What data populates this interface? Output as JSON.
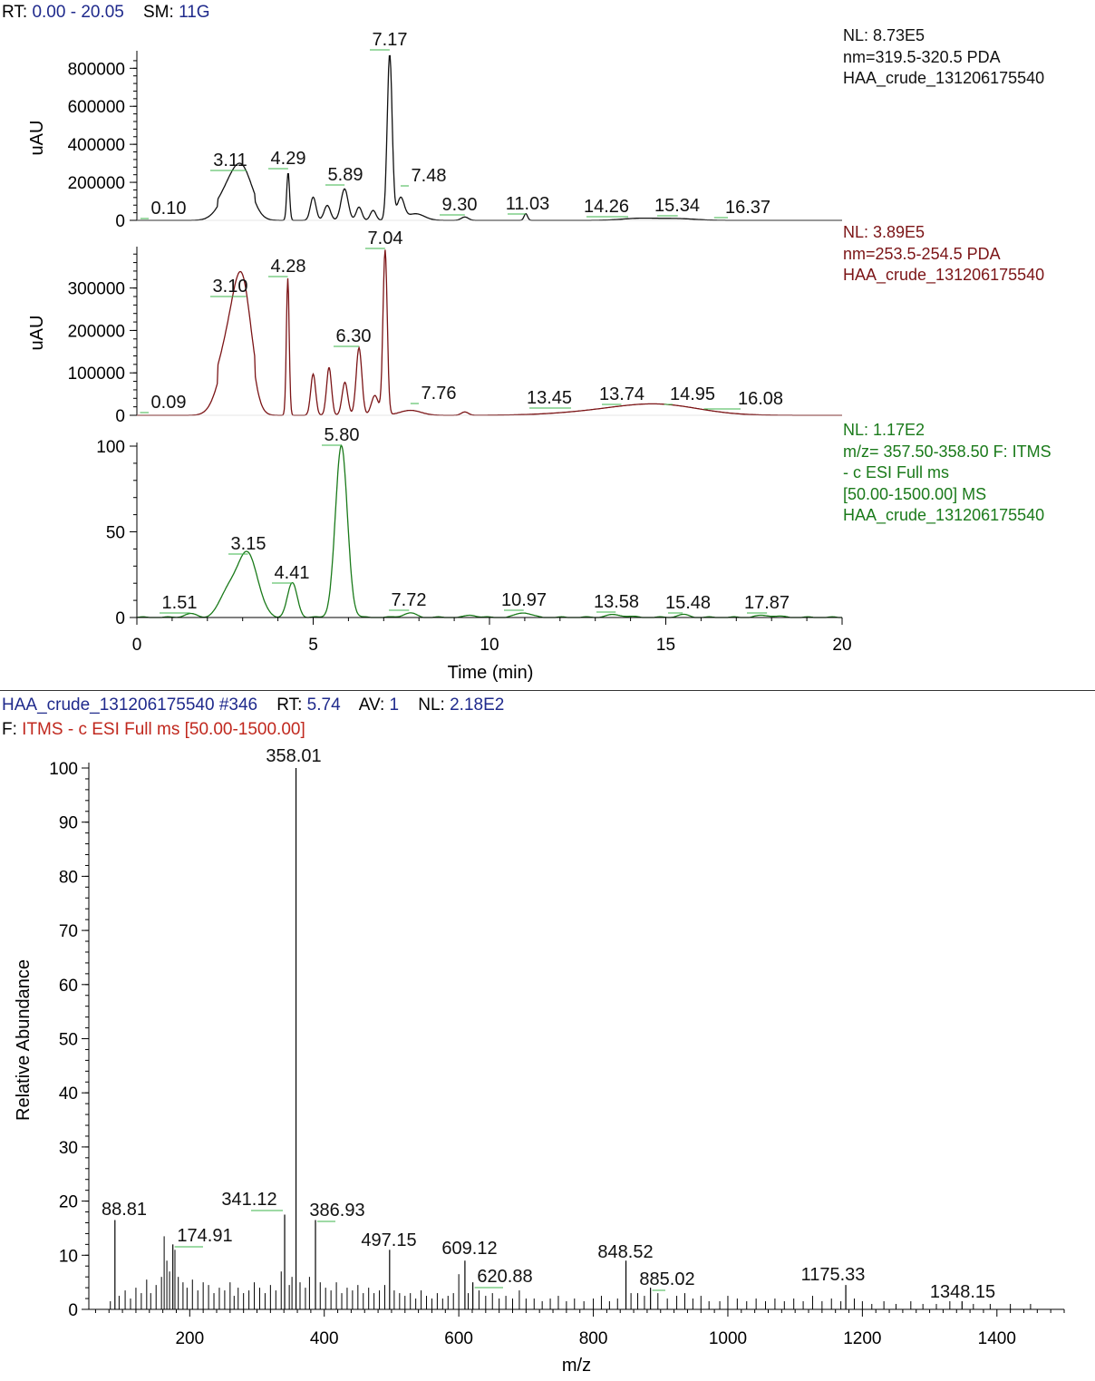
{
  "header": {
    "rt_key": "RT:",
    "rt_value": "0.00 - 20.05",
    "sm_key": "SM:",
    "sm_value": "11G"
  },
  "chromatograms": {
    "x_axis": {
      "label": "Time (min)",
      "ticks": [
        0,
        5,
        10,
        15,
        20
      ],
      "range": [
        0,
        20
      ]
    },
    "traces": [
      {
        "color": "#111111",
        "y_label": "uAU",
        "y_ticks": [
          "0",
          "200000",
          "400000",
          "600000",
          "800000"
        ],
        "y_tick_values": [
          0,
          200000,
          400000,
          600000,
          800000
        ],
        "y_max": 873000,
        "info": [
          "NL: 8.73E5",
          "nm=319.5-320.5  PDA",
          "HAA_crude_131206175540"
        ],
        "peaks": [
          {
            "label": "0.10",
            "t": 0.1
          },
          {
            "label": "3.11",
            "t": 3.11
          },
          {
            "label": "4.29",
            "t": 4.29
          },
          {
            "label": "5.89",
            "t": 5.89
          },
          {
            "label": "7.17",
            "t": 7.17
          },
          {
            "label": "7.48",
            "t": 7.48
          },
          {
            "label": "9.30",
            "t": 9.3
          },
          {
            "label": "11.03",
            "t": 11.03
          },
          {
            "label": "14.26",
            "t": 14.26
          },
          {
            "label": "15.34",
            "t": 15.34
          },
          {
            "label": "16.37",
            "t": 16.37
          }
        ]
      },
      {
        "color": "#7b1416",
        "y_label": "uAU",
        "y_ticks": [
          "0",
          "100000",
          "200000",
          "300000"
        ],
        "y_tick_values": [
          0,
          100000,
          200000,
          300000
        ],
        "y_max": 389000,
        "info": [
          "NL: 3.89E5",
          "nm=253.5-254.5  PDA",
          "HAA_crude_131206175540"
        ],
        "peaks": [
          {
            "label": "0.09",
            "t": 0.09
          },
          {
            "label": "3.10",
            "t": 3.1
          },
          {
            "label": "4.28",
            "t": 4.28
          },
          {
            "label": "6.30",
            "t": 6.3
          },
          {
            "label": "7.04",
            "t": 7.04
          },
          {
            "label": "7.76",
            "t": 7.76
          },
          {
            "label": "13.45",
            "t": 13.45
          },
          {
            "label": "13.74",
            "t": 13.74
          },
          {
            "label": "14.95",
            "t": 14.95
          },
          {
            "label": "16.08",
            "t": 16.08
          }
        ]
      },
      {
        "color": "#1a7a1a",
        "y_label": "",
        "y_ticks": [
          "0",
          "50",
          "100"
        ],
        "y_tick_values": [
          0,
          50,
          100
        ],
        "y_max": 100,
        "info": [
          "NL: 1.17E2",
          "m/z= 357.50-358.50 F: ITMS",
          "- c ESI Full ms",
          "[50.00-1500.00]  MS",
          "HAA_crude_131206175540"
        ],
        "peaks": [
          {
            "label": "1.51",
            "t": 1.51
          },
          {
            "label": "3.15",
            "t": 3.15
          },
          {
            "label": "4.41",
            "t": 4.41
          },
          {
            "label": "5.80",
            "t": 5.8
          },
          {
            "label": "7.72",
            "t": 7.72
          },
          {
            "label": "10.97",
            "t": 10.97
          },
          {
            "label": "13.58",
            "t": 13.58
          },
          {
            "label": "15.48",
            "t": 15.48
          },
          {
            "label": "17.87",
            "t": 17.87
          }
        ]
      }
    ]
  },
  "spectrum_header": {
    "file": "HAA_crude_131206175540",
    "scan": "#346",
    "rt_key": "RT:",
    "rt_value": "5.74",
    "av_key": "AV:",
    "av_value": "1",
    "nl_key": "NL:",
    "nl_value": "2.18E2",
    "filter_key": "F:",
    "filter_value": "ITMS - c ESI Full ms [50.00-1500.00]"
  },
  "chart_data": {
    "type": "bar",
    "xlabel": "m/z",
    "ylabel": "Relative Abundance",
    "xlim": [
      50,
      1500
    ],
    "ylim": [
      0,
      100
    ],
    "x_ticks": [
      200,
      400,
      600,
      800,
      1000,
      1200,
      1400
    ],
    "y_ticks": [
      0,
      10,
      20,
      30,
      40,
      50,
      60,
      70,
      80,
      90,
      100
    ],
    "labeled_peaks": [
      {
        "mz": 88.81,
        "label": "88.81",
        "intensity": 16.5
      },
      {
        "mz": 174.91,
        "label": "174.91",
        "intensity": 12
      },
      {
        "mz": 341.12,
        "label": "341.12",
        "intensity": 17.5
      },
      {
        "mz": 358.01,
        "label": "358.01",
        "intensity": 100
      },
      {
        "mz": 386.93,
        "label": "386.93",
        "intensity": 16.5
      },
      {
        "mz": 497.15,
        "label": "497.15",
        "intensity": 11
      },
      {
        "mz": 609.12,
        "label": "609.12",
        "intensity": 9
      },
      {
        "mz": 620.88,
        "label": "620.88",
        "intensity": 5
      },
      {
        "mz": 848.52,
        "label": "848.52",
        "intensity": 9
      },
      {
        "mz": 885.02,
        "label": "885.02",
        "intensity": 4
      },
      {
        "mz": 1175.33,
        "label": "1175.33",
        "intensity": 4.5
      },
      {
        "mz": 1348.15,
        "label": "1348.15",
        "intensity": 1.5
      }
    ],
    "peaks": [
      [
        82,
        1.5
      ],
      [
        95,
        2.5
      ],
      [
        104,
        3.5
      ],
      [
        112,
        2
      ],
      [
        120,
        4
      ],
      [
        128,
        3
      ],
      [
        136,
        5.5
      ],
      [
        142,
        3
      ],
      [
        150,
        4.5
      ],
      [
        158,
        6
      ],
      [
        162,
        13.5
      ],
      [
        166,
        9
      ],
      [
        170,
        7
      ],
      [
        178,
        11
      ],
      [
        183,
        6
      ],
      [
        190,
        5
      ],
      [
        196,
        4
      ],
      [
        204,
        5.5
      ],
      [
        212,
        3.5
      ],
      [
        220,
        5
      ],
      [
        228,
        4.5
      ],
      [
        236,
        3
      ],
      [
        244,
        4
      ],
      [
        252,
        3.5
      ],
      [
        260,
        5
      ],
      [
        266,
        2.5
      ],
      [
        272,
        4
      ],
      [
        280,
        3
      ],
      [
        288,
        3.5
      ],
      [
        296,
        5
      ],
      [
        304,
        4
      ],
      [
        312,
        3
      ],
      [
        320,
        4.5
      ],
      [
        328,
        3.5
      ],
      [
        336,
        7
      ],
      [
        348,
        4.5
      ],
      [
        352,
        6
      ],
      [
        364,
        5
      ],
      [
        372,
        4
      ],
      [
        378,
        6
      ],
      [
        394,
        5
      ],
      [
        402,
        4
      ],
      [
        410,
        3.5
      ],
      [
        418,
        5
      ],
      [
        426,
        3
      ],
      [
        434,
        4
      ],
      [
        442,
        3.5
      ],
      [
        450,
        4.5
      ],
      [
        458,
        3
      ],
      [
        466,
        4
      ],
      [
        474,
        3
      ],
      [
        482,
        3.5
      ],
      [
        490,
        4.5
      ],
      [
        504,
        3.5
      ],
      [
        512,
        3
      ],
      [
        520,
        2.5
      ],
      [
        528,
        3
      ],
      [
        536,
        2
      ],
      [
        544,
        3.5
      ],
      [
        552,
        2.5
      ],
      [
        560,
        2
      ],
      [
        568,
        3
      ],
      [
        576,
        2
      ],
      [
        584,
        2.5
      ],
      [
        592,
        3
      ],
      [
        600,
        6.5
      ],
      [
        614,
        3
      ],
      [
        630,
        3.5
      ],
      [
        640,
        2.5
      ],
      [
        650,
        3
      ],
      [
        660,
        2
      ],
      [
        670,
        2.5
      ],
      [
        680,
        2
      ],
      [
        690,
        3.5
      ],
      [
        700,
        2
      ],
      [
        712,
        2
      ],
      [
        724,
        1.5
      ],
      [
        736,
        2
      ],
      [
        748,
        2.5
      ],
      [
        760,
        1.5
      ],
      [
        772,
        2
      ],
      [
        786,
        1.5
      ],
      [
        800,
        2
      ],
      [
        812,
        2.5
      ],
      [
        824,
        1.5
      ],
      [
        836,
        2
      ],
      [
        856,
        3
      ],
      [
        866,
        3
      ],
      [
        876,
        2.5
      ],
      [
        896,
        3
      ],
      [
        910,
        2
      ],
      [
        924,
        2.5
      ],
      [
        936,
        3
      ],
      [
        948,
        2
      ],
      [
        960,
        2.5
      ],
      [
        972,
        1.5
      ],
      [
        988,
        1.5
      ],
      [
        1000,
        2.5
      ],
      [
        1014,
        2
      ],
      [
        1028,
        1.5
      ],
      [
        1042,
        2
      ],
      [
        1056,
        1.5
      ],
      [
        1070,
        2
      ],
      [
        1084,
        1.5
      ],
      [
        1098,
        2
      ],
      [
        1112,
        1.5
      ],
      [
        1126,
        2.5
      ],
      [
        1140,
        1.5
      ],
      [
        1154,
        2
      ],
      [
        1168,
        1.5
      ],
      [
        1188,
        2
      ],
      [
        1200,
        1.5
      ],
      [
        1214,
        1
      ],
      [
        1232,
        1.5
      ],
      [
        1250,
        1
      ],
      [
        1272,
        1.5
      ],
      [
        1290,
        1
      ],
      [
        1310,
        1
      ],
      [
        1330,
        1.5
      ],
      [
        1365,
        1
      ],
      [
        1390,
        1
      ],
      [
        1420,
        1
      ],
      [
        1450,
        1
      ]
    ]
  }
}
